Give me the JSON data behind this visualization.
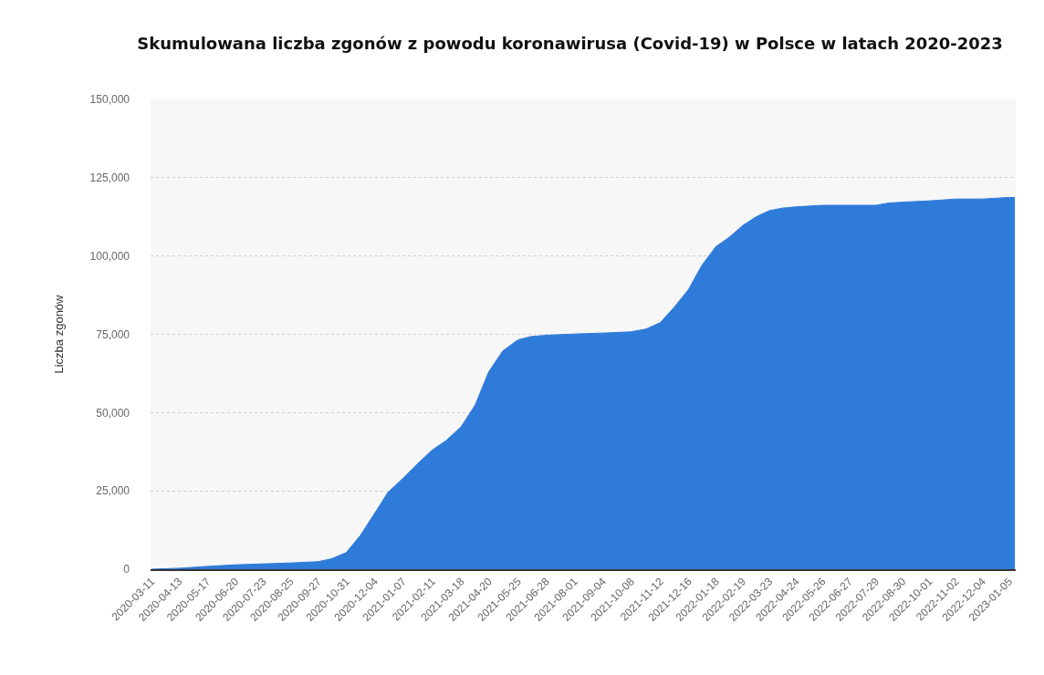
{
  "chart_data": {
    "type": "area",
    "title": "Skumulowana liczba zgonów z powodu koronawirusa (Covid-19) w Polsce w latach 2020-2023",
    "ylabel": "Liczba zgonów",
    "x": [
      "2020-03-11",
      "2020-04-13",
      "2020-05-17",
      "2020-06-20",
      "2020-07-23",
      "2020-08-25",
      "2020-09-27",
      "2020-10-13",
      "2020-10-31",
      "2020-11-17",
      "2020-12-04",
      "2020-12-20",
      "2021-01-07",
      "2021-01-24",
      "2021-02-11",
      "2021-02-28",
      "2021-03-18",
      "2021-04-04",
      "2021-04-20",
      "2021-05-07",
      "2021-05-25",
      "2021-06-10",
      "2021-06-28",
      "2021-08-01",
      "2021-09-04",
      "2021-10-08",
      "2021-10-26",
      "2021-11-12",
      "2021-11-29",
      "2021-12-16",
      "2022-01-01",
      "2022-01-18",
      "2022-02-03",
      "2022-02-19",
      "2022-03-07",
      "2022-03-23",
      "2022-04-08",
      "2022-04-24",
      "2022-05-26",
      "2022-06-27",
      "2022-07-29",
      "2022-08-13",
      "2022-08-30",
      "2022-10-01",
      "2022-11-02",
      "2022-12-04",
      "2023-01-05",
      "2023-01-12"
    ],
    "values": [
      0,
      300,
      900,
      1400,
      1700,
      2000,
      2400,
      3300,
      5300,
      10800,
      17800,
      24500,
      29000,
      33500,
      38000,
      41100,
      45500,
      52500,
      63000,
      69700,
      73200,
      74300,
      74700,
      75100,
      75400,
      75800,
      76700,
      78700,
      83700,
      89300,
      97000,
      103000,
      106000,
      109700,
      112500,
      114500,
      115300,
      115700,
      116200,
      116200,
      116200,
      116900,
      117200,
      117600,
      118200,
      118200,
      118700,
      118700
    ],
    "color": "#2f7bd9",
    "xlim": [
      "2020-03-10",
      "2023-01-13"
    ],
    "xticks": [
      "2020-03-11",
      "2020-04-13",
      "2020-05-17",
      "2020-06-20",
      "2020-07-23",
      "2020-08-25",
      "2020-09-27",
      "2020-10-31",
      "2020-12-04",
      "2021-01-07",
      "2021-02-11",
      "2021-03-18",
      "2021-04-20",
      "2021-05-25",
      "2021-06-28",
      "2021-08-01",
      "2021-09-04",
      "2021-10-08",
      "2021-11-12",
      "2021-12-16",
      "2022-01-18",
      "2022-02-19",
      "2022-03-23",
      "2022-04-24",
      "2022-05-26",
      "2022-06-27",
      "2022-07-29",
      "2022-08-30",
      "2022-10-01",
      "2022-11-02",
      "2022-12-04",
      "2023-01-05"
    ],
    "ylim": [
      0,
      150000
    ],
    "yticks": [
      0,
      {
        "value": 25000,
        "label": "25,000"
      },
      {
        "value": 50000,
        "label": "50,000"
      },
      {
        "value": 75000,
        "label": "75,000"
      },
      {
        "value": 100000,
        "label": "100,000"
      },
      {
        "value": 125000,
        "label": "125,000"
      },
      {
        "value": 150000,
        "label": "150,000"
      }
    ],
    "grid": "y"
  }
}
